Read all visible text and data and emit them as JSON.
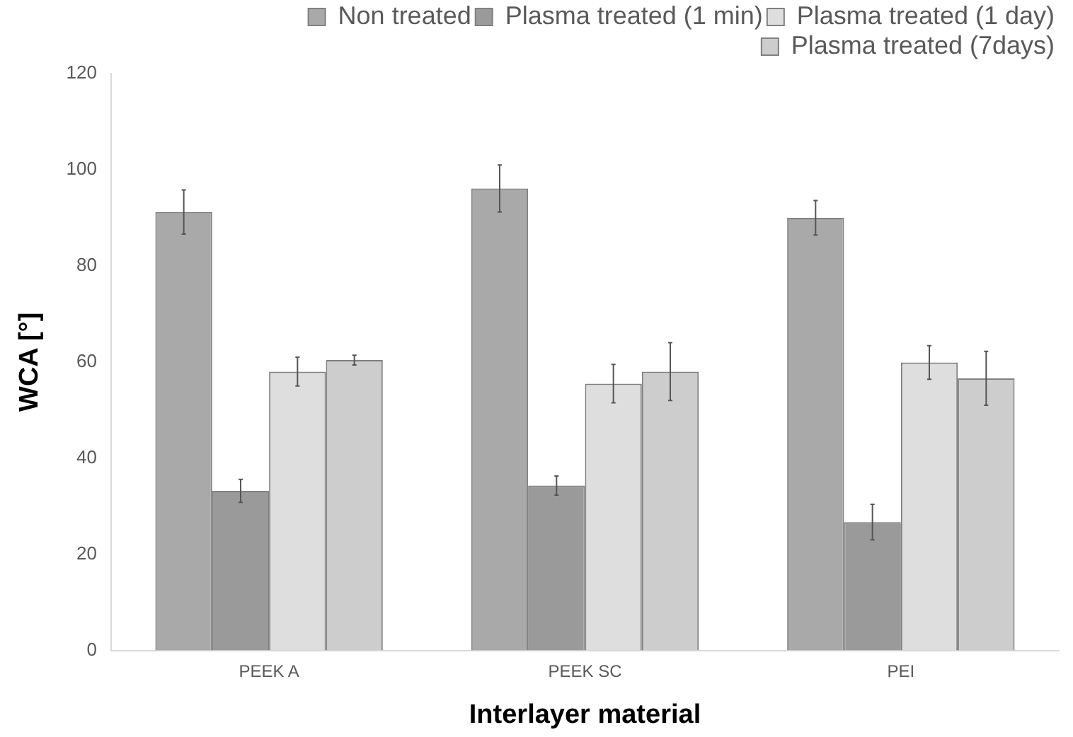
{
  "chart_data": {
    "type": "bar",
    "xlabel": "Interlayer material",
    "ylabel": "WCA [°]",
    "categories": [
      "PEEK A",
      "PEEK SC",
      "PEI"
    ],
    "series": [
      {
        "name": "Non treated",
        "color": "#a9a9a9",
        "values": [
          91.2,
          96.1,
          90.0
        ],
        "errors": [
          4.6,
          4.9,
          3.6
        ]
      },
      {
        "name": "Plasma treated (1 min)",
        "color": "#9a9a9a",
        "values": [
          33.2,
          34.3,
          26.7
        ],
        "errors": [
          2.4,
          2.0,
          3.7
        ]
      },
      {
        "name": "Plasma treated (1 day)",
        "color": "#dedede",
        "values": [
          58.0,
          55.5,
          59.9
        ],
        "errors": [
          3.0,
          4.0,
          3.5
        ]
      },
      {
        "name": "Plasma treated (7days)",
        "color": "#cdcdcd",
        "values": [
          60.4,
          58.0,
          56.6
        ],
        "errors": [
          1.0,
          6.0,
          5.6
        ]
      }
    ],
    "ylim": [
      0,
      120
    ],
    "yticks": [
      0,
      20,
      40,
      60,
      80,
      100,
      120
    ],
    "grid": false,
    "legend": "top right"
  }
}
